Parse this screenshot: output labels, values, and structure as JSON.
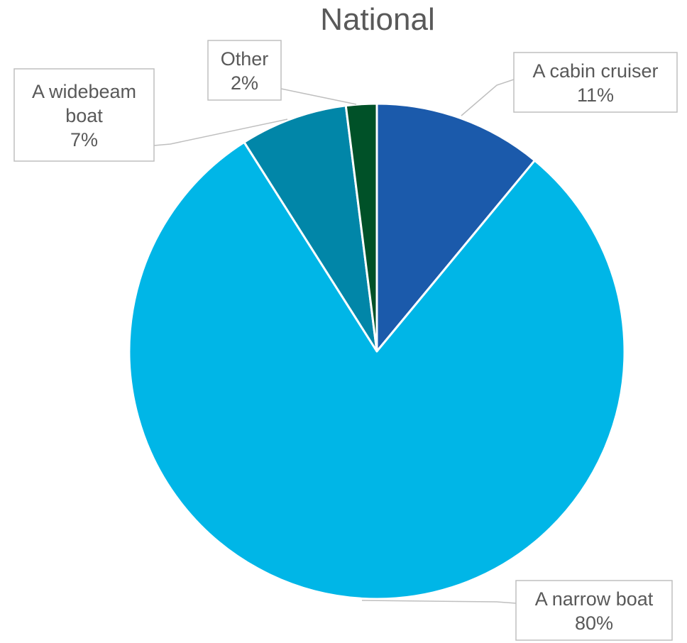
{
  "chart_data": {
    "type": "pie",
    "title": "National",
    "slices": [
      {
        "label": "A cabin cruiser",
        "value": 11,
        "display": "11%",
        "color": "#1b5aab"
      },
      {
        "label": "A narrow boat",
        "value": 80,
        "display": "80%",
        "color": "#00b6e7"
      },
      {
        "label": "A widebeam boat",
        "value": 7,
        "display": "7%",
        "color": "#0186a8"
      },
      {
        "label": "Other",
        "value": 2,
        "display": "2%",
        "color": "#005128"
      }
    ],
    "legend": "none",
    "data_labels": "callout boxes with category name and percentage"
  }
}
